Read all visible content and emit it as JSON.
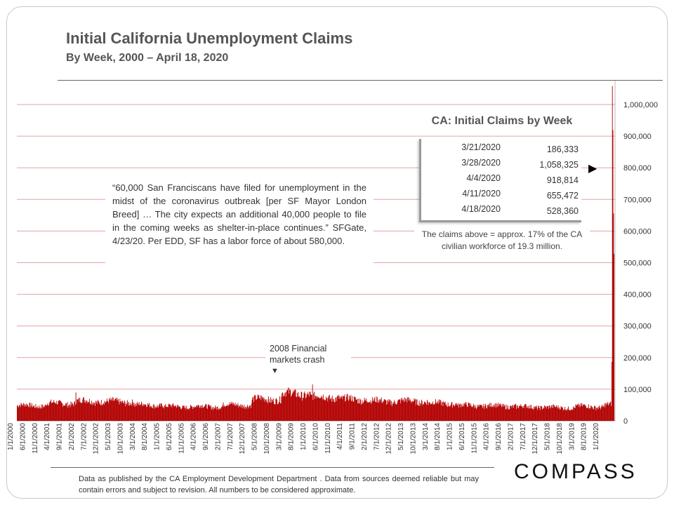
{
  "header": {
    "title": "Initial California Unemployment Claims",
    "subtitle": "By Week, 2000 – April 18, 2020"
  },
  "inset": {
    "title": "CA: Initial Claims by Week",
    "rows": [
      {
        "date": "3/21/2020",
        "value": "186,333"
      },
      {
        "date": "3/28/2020",
        "value": "1,058,325"
      },
      {
        "date": "4/4/2020",
        "value": "918,814"
      },
      {
        "date": "4/11/2020",
        "value": "655,472"
      },
      {
        "date": "4/18/2020",
        "value": "528,360"
      }
    ],
    "pointer": "▶",
    "note": "The claims above = approx. 17% of the CA civilian workforce of 19.3 million."
  },
  "quote": {
    "text": "“60,000 San Franciscans have filed for unemployment in the midst of the coronavirus outbreak [per SF Mayor London Breed] … The city expects an additional 40,000 people to file in the coming weeks as shelter-in-place continues.” SFGate, 4/23/20. Per EDD, SF has a labor force of about 580,000."
  },
  "annotation": {
    "text": "2008 Financial markets crash",
    "arrow": "▼"
  },
  "footer": {
    "text": "Data as published by the CA Employment Development Department . Data from sources deemed reliable but may contain errors and subject to revision. All numbers to be considered approximate."
  },
  "logo": {
    "text": "COMPASS"
  },
  "chart_data": {
    "type": "bar",
    "title": "Initial California Unemployment Claims",
    "subtitle": "By Week, 2000 – April 18, 2020",
    "xlabel": "",
    "ylabel": "",
    "ylim": [
      0,
      1100000
    ],
    "y_ticks": [
      0,
      100000,
      200000,
      300000,
      400000,
      500000,
      600000,
      700000,
      800000,
      900000,
      1000000
    ],
    "y_tick_labels": [
      "0",
      "100,000",
      "200,000",
      "300,000",
      "400,000",
      "500,000",
      "600,000",
      "700,000",
      "800,000",
      "900,000",
      "1,000,000"
    ],
    "x_range": [
      "1/1/2000",
      "4/18/2020"
    ],
    "x_tick_labels": [
      "1/1/2000",
      "6/1/2000",
      "11/1/2000",
      "4/1/2001",
      "9/1/2001",
      "2/1/2002",
      "7/1/2002",
      "12/1/2002",
      "5/1/2003",
      "10/1/2003",
      "3/1/2004",
      "8/1/2004",
      "1/1/2005",
      "6/1/2005",
      "11/1/2005",
      "4/1/2006",
      "9/1/2006",
      "2/1/2007",
      "7/1/2007",
      "12/1/2007",
      "5/1/2008",
      "10/1/2008",
      "3/1/2009",
      "8/1/2009",
      "1/1/2010",
      "6/1/2010",
      "11/1/2010",
      "4/1/2011",
      "9/1/2011",
      "2/1/2012",
      "7/1/2012",
      "12/1/2012",
      "5/1/2013",
      "10/1/2013",
      "3/1/2014",
      "8/1/2014",
      "1/1/2015",
      "6/1/2015",
      "11/1/2015",
      "4/1/2016",
      "9/1/2016",
      "2/1/2017",
      "7/1/2017",
      "12/1/2017",
      "5/1/2018",
      "10/1/2018",
      "3/1/2019",
      "8/1/2019",
      "1/1/2020"
    ],
    "bar_color": "#b30000",
    "grid": true,
    "grid_color": "#e8a0a0",
    "series_periods": [
      {
        "from": "2000-01",
        "to": "2000-12",
        "approx": 48000
      },
      {
        "from": "2001-01",
        "to": "2001-12",
        "approx": 55000
      },
      {
        "from": "2002-01",
        "to": "2002-12",
        "approx": 62000
      },
      {
        "from": "2003-01",
        "to": "2003-12",
        "approx": 60000
      },
      {
        "from": "2004-01",
        "to": "2004-12",
        "approx": 50000
      },
      {
        "from": "2005-01",
        "to": "2005-12",
        "approx": 45000
      },
      {
        "from": "2006-01",
        "to": "2006-12",
        "approx": 45000
      },
      {
        "from": "2007-01",
        "to": "2007-12",
        "approx": 50000
      },
      {
        "from": "2008-01",
        "to": "2008-12",
        "approx": 68000
      },
      {
        "from": "2009-01",
        "to": "2009-12",
        "approx": 85000
      },
      {
        "from": "2010-01",
        "to": "2010-12",
        "approx": 75000
      },
      {
        "from": "2011-01",
        "to": "2011-12",
        "approx": 68000
      },
      {
        "from": "2012-01",
        "to": "2012-12",
        "approx": 62000
      },
      {
        "from": "2013-01",
        "to": "2013-12",
        "approx": 62000
      },
      {
        "from": "2014-01",
        "to": "2014-12",
        "approx": 55000
      },
      {
        "from": "2015-01",
        "to": "2015-12",
        "approx": 48000
      },
      {
        "from": "2016-01",
        "to": "2016-12",
        "approx": 47000
      },
      {
        "from": "2017-01",
        "to": "2017-12",
        "approx": 44000
      },
      {
        "from": "2018-01",
        "to": "2018-12",
        "approx": 42000
      },
      {
        "from": "2019-01",
        "to": "2019-12",
        "approx": 45000
      },
      {
        "from": "2020-01",
        "to": "2020-03",
        "approx": 50000
      }
    ],
    "notable_spikes": [
      {
        "date": "1/2002",
        "value": 90000
      },
      {
        "date": "1/2010",
        "value": 115000
      }
    ],
    "final_weeks": [
      {
        "date": "3/21/2020",
        "value": 186333
      },
      {
        "date": "3/28/2020",
        "value": 1058325
      },
      {
        "date": "4/4/2020",
        "value": 918814
      },
      {
        "date": "4/11/2020",
        "value": 655472
      },
      {
        "date": "4/18/2020",
        "value": 528360
      }
    ]
  }
}
